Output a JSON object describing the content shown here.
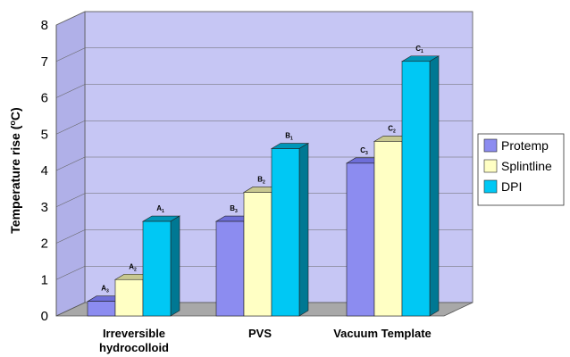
{
  "chart_data": {
    "type": "bar",
    "categories": [
      "Irreversible hydrocolloid",
      "PVS",
      "Vacuum Template"
    ],
    "category_lines": [
      [
        "Irreversible",
        "hydrocolloid"
      ],
      [
        "PVS"
      ],
      [
        "Vacuum Template"
      ]
    ],
    "series": [
      {
        "name": "Protemp",
        "values": [
          0.4,
          2.6,
          4.2
        ],
        "labels": [
          {
            "letter": "A",
            "sub": "3"
          },
          {
            "letter": "B",
            "sub": "3"
          },
          {
            "letter": "C",
            "sub": "3"
          }
        ]
      },
      {
        "name": "Splintline",
        "values": [
          1.0,
          3.4,
          4.8
        ],
        "labels": [
          {
            "letter": "A",
            "sub": "2"
          },
          {
            "letter": "B",
            "sub": "2"
          },
          {
            "letter": "C",
            "sub": "2"
          }
        ]
      },
      {
        "name": "DPI",
        "values": [
          2.6,
          4.6,
          7.0
        ],
        "labels": [
          {
            "letter": "A",
            "sub": "1"
          },
          {
            "letter": "B",
            "sub": "1"
          },
          {
            "letter": "C",
            "sub": "1"
          }
        ]
      }
    ],
    "colors": {
      "Protemp": {
        "front": "#8c8cf0",
        "top": "#6e6ed8",
        "side": "#4d4db4"
      },
      "Splintline": {
        "front": "#ffffc4",
        "top": "#c8c890",
        "side": "#a7a770"
      },
      "DPI": {
        "front": "#00c8f4",
        "top": "#0096b8",
        "side": "#007893"
      },
      "wall": "#c6c6f4",
      "floor": "#a8a8a8"
    },
    "ylabel_text": "Temperature rise (",
    "ylabel_unit": "C)",
    "ylabel_degree": "o",
    "xlabel": "",
    "title": "",
    "ylim": [
      0,
      8
    ],
    "yticks": [
      0,
      1,
      2,
      3,
      4,
      5,
      6,
      7,
      8
    ],
    "grid": true,
    "legend": "right"
  }
}
